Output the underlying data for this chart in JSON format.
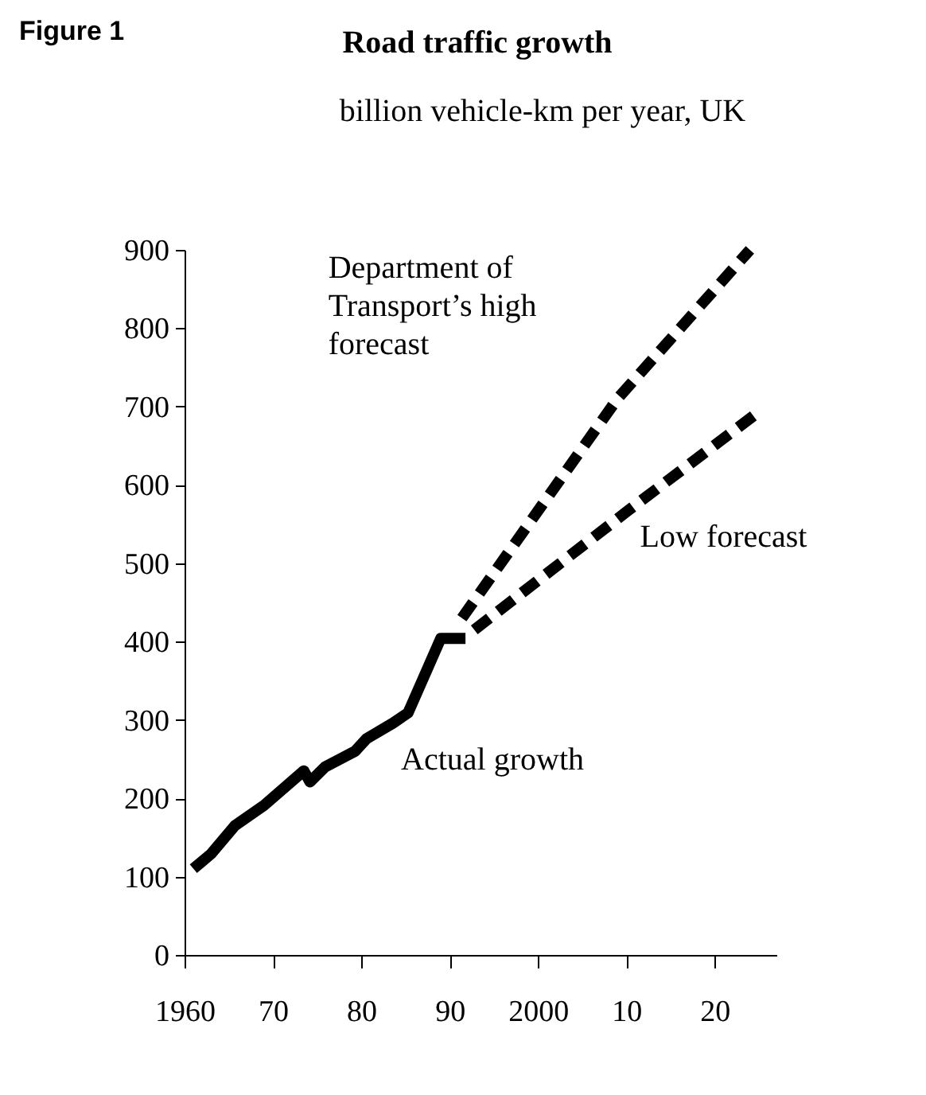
{
  "chart_data": {
    "type": "line",
    "title": "Road traffic growth",
    "subtitle": "billion vehicle-km per year, UK",
    "xlim": [
      1960,
      2027
    ],
    "ylim": [
      0,
      900
    ],
    "xticks": [
      {
        "value": 1960,
        "label": "1960"
      },
      {
        "value": 1970,
        "label": "70"
      },
      {
        "value": 1980,
        "label": "80"
      },
      {
        "value": 1990,
        "label": "90"
      },
      {
        "value": 2000,
        "label": "2000"
      },
      {
        "value": 2010,
        "label": "10"
      },
      {
        "value": 2020,
        "label": "20"
      }
    ],
    "yticks": [
      0,
      100,
      200,
      300,
      400,
      500,
      600,
      700,
      800,
      900
    ],
    "grid": false,
    "series": [
      {
        "name": "Actual growth",
        "color": "#000000",
        "line_style": "solid",
        "x": [
          1961,
          1963,
          1965.7,
          1969,
          1973.5,
          1974.2,
          1975.9,
          1979.3,
          1980.6,
          1983.6,
          1985.3,
          1989,
          1991.8
        ],
        "values": [
          110,
          129,
          165,
          191,
          235,
          221,
          240,
          260,
          276,
          296,
          309,
          404,
          404
        ]
      },
      {
        "name": "Department of\nTransport’s high\nforecast",
        "color": "#000000",
        "line_style": "dashed",
        "x": [
          1991.4,
          2009,
          2024
        ],
        "values": [
          430,
          710,
          900
        ]
      },
      {
        "name": "Low forecast",
        "color": "#000000",
        "line_style": "dashed",
        "x": [
          1992.8,
          2010.3,
          2025.2
        ],
        "values": [
          415,
          568,
          695
        ]
      }
    ],
    "annotations": [
      "Figure 1"
    ]
  }
}
